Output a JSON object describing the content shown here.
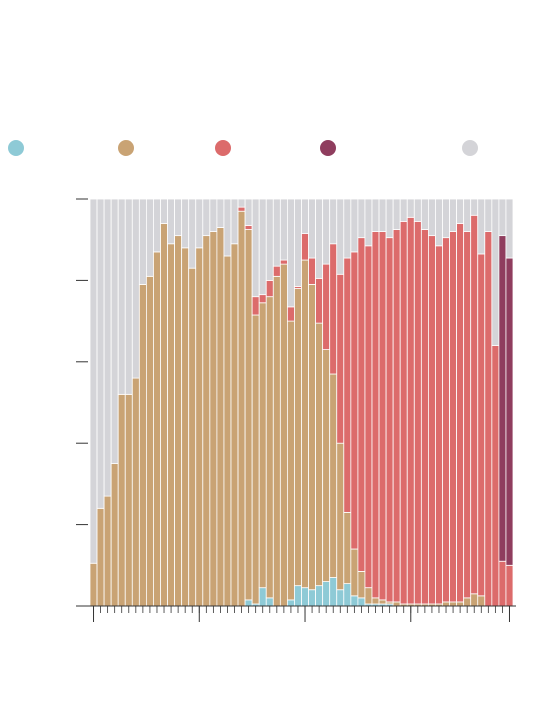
{
  "chart_data": {
    "type": "stacked_bar",
    "ylim": [
      0,
      100
    ],
    "yticks": [
      0,
      20,
      40,
      60,
      80,
      100
    ],
    "xticks": [
      0,
      15,
      30,
      45,
      59
    ],
    "series": [
      {
        "color": "#8ecad6",
        "values": [
          0,
          0,
          0,
          0,
          0,
          0,
          0,
          0,
          0,
          0,
          0,
          0,
          0,
          0,
          0,
          0,
          0,
          0,
          0,
          0,
          0,
          0,
          1.5,
          0.5,
          4.5,
          2,
          0,
          0,
          1.5,
          5,
          4.5,
          4,
          5,
          6,
          7,
          4,
          5.5,
          2.5,
          2,
          0.5,
          0.5,
          0.5,
          0.5,
          0,
          0,
          0,
          0,
          0,
          0,
          0,
          0,
          0,
          0,
          0,
          0,
          0,
          0,
          0,
          0,
          0
        ]
      },
      {
        "color": "#c9a374",
        "values": [
          10.5,
          24,
          27,
          35,
          52,
          52,
          56,
          79,
          81,
          87,
          94,
          89,
          91,
          88,
          83,
          88,
          91,
          92,
          93,
          86,
          89,
          97,
          91,
          71,
          70,
          74,
          81,
          84,
          68.5,
          73,
          80.5,
          75,
          64.5,
          57,
          50,
          36,
          17.5,
          11.5,
          6.5,
          4,
          1.5,
          1,
          0.5,
          1,
          0.5,
          0.5,
          0.5,
          0.5,
          0.5,
          0.5,
          1,
          1,
          1,
          2,
          3,
          2.5,
          0,
          0,
          0,
          0
        ]
      },
      {
        "color": "#dc6b6b",
        "values": [
          0,
          0,
          0,
          0,
          0,
          0,
          0,
          0,
          0,
          0,
          0,
          0,
          0,
          0,
          0,
          0,
          0,
          0,
          0,
          0,
          0,
          1,
          1,
          4.5,
          2,
          4,
          2.5,
          1,
          3.5,
          0.5,
          6.5,
          6.5,
          11,
          21,
          32,
          41.5,
          62.5,
          73,
          82,
          84,
          90,
          90.5,
          89.5,
          91.5,
          94,
          95,
          94,
          92,
          90.5,
          88,
          89.5,
          91,
          93,
          90,
          93,
          84,
          92,
          64,
          11,
          10
        ]
      },
      {
        "color": "#8f3d5e",
        "values": [
          0,
          0,
          0,
          0,
          0,
          0,
          0,
          0,
          0,
          0,
          0,
          0,
          0,
          0,
          0,
          0,
          0,
          0,
          0,
          0,
          0,
          0,
          0,
          0,
          0,
          0,
          0,
          0,
          0,
          0,
          0,
          0,
          0,
          0,
          0,
          0,
          0,
          0,
          0,
          0,
          0,
          0,
          0,
          0,
          0,
          0,
          0,
          0,
          0,
          0,
          0,
          0,
          0,
          0,
          0,
          0,
          0,
          0,
          80,
          75.5
        ]
      },
      {
        "color": "#d4d4d8",
        "values": [
          89.5,
          76,
          73,
          65,
          48,
          48,
          44,
          21,
          19,
          13,
          6,
          11,
          9,
          12,
          17,
          12,
          9,
          8,
          7,
          14,
          11,
          2,
          6.5,
          24,
          23.5,
          20,
          16.5,
          15,
          26.5,
          21.5,
          8.5,
          14.5,
          19.5,
          16,
          11,
          18.5,
          14.5,
          13,
          9.5,
          11.5,
          8,
          8,
          9.5,
          7.5,
          5.5,
          4.5,
          5.5,
          7.5,
          9,
          11.5,
          9.5,
          8,
          6,
          8,
          4,
          13.5,
          8,
          36,
          9,
          14.5
        ]
      }
    ]
  }
}
